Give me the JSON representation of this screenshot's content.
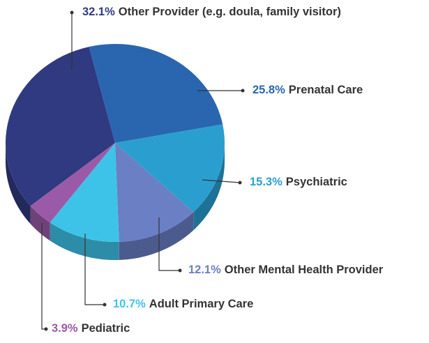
{
  "chart_data": {
    "type": "pie",
    "categories": [
      "Other Provider (e.g. doula, family visitor)",
      "Prenatal Care",
      "Psychiatric",
      "Other Mental Health Provider",
      "Adult Primary Care",
      "Pediatric"
    ],
    "series": [
      {
        "values": [
          32.1,
          25.8,
          15.3,
          12.1,
          10.7,
          3.9
        ],
        "value_labels": [
          "32.1%",
          "25.8%",
          "15.3%",
          "12.1%",
          "10.7%",
          "3.9%"
        ],
        "colors": [
          "#2f3a80",
          "#2a66b0",
          "#2a9fcf",
          "#6a7fc4",
          "#3ec3e8",
          "#9a5aa8"
        ]
      }
    ]
  }
}
